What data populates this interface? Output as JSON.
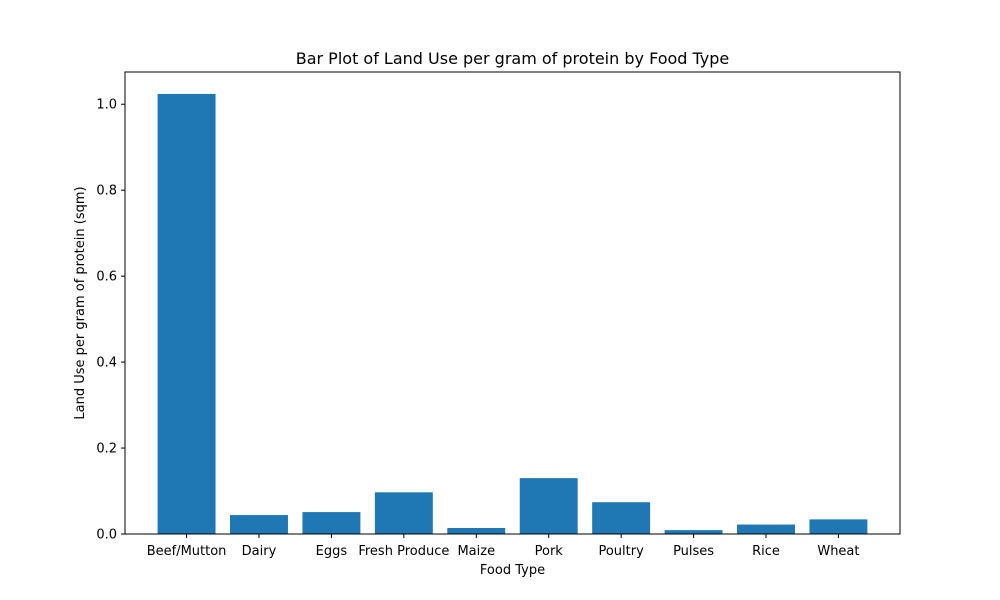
{
  "chart_data": {
    "type": "bar",
    "title": "Bar Plot of Land Use per gram of protein by Food Type",
    "xlabel": "Food Type",
    "ylabel": "Land Use per gram of protein (sqm)",
    "categories": [
      "Beef/Mutton",
      "Dairy",
      "Eggs",
      "Fresh Produce",
      "Maize",
      "Pork",
      "Poultry",
      "Pulses",
      "Rice",
      "Wheat"
    ],
    "values": [
      1.024,
      0.044,
      0.051,
      0.097,
      0.014,
      0.13,
      0.074,
      0.009,
      0.022,
      0.034
    ],
    "ylim": [
      0,
      1.075
    ],
    "yticks": [
      0.0,
      0.2,
      0.4,
      0.6,
      0.8,
      1.0
    ],
    "ytick_labels": [
      "0.0",
      "0.2",
      "0.4",
      "0.6",
      "0.8",
      "1.0"
    ],
    "bar_color": "#1f77b4",
    "grid": false,
    "legend": "none"
  }
}
